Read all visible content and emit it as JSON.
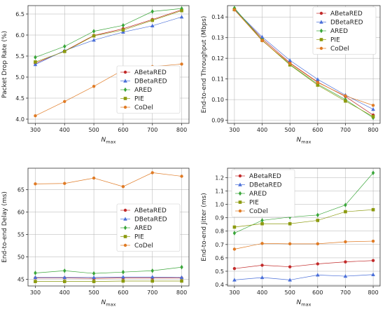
{
  "chart_data": [
    {
      "type": "line",
      "xlabel": "N",
      "xlabel_sub": "max",
      "ylabel": "Packet Drop Rate (%)",
      "x": [
        300,
        400,
        500,
        600,
        700,
        800
      ],
      "xlim": [
        275,
        825
      ],
      "ylim": [
        3.9,
        6.7
      ],
      "yticks": [
        "4.0",
        "4.5",
        "5.0",
        "5.5",
        "6.0",
        "6.5"
      ],
      "grid": true,
      "legend_position": "bottom-right",
      "series": [
        {
          "name": "ABetaRED",
          "values": [
            5.33,
            5.62,
            5.99,
            6.15,
            6.37,
            6.6
          ]
        },
        {
          "name": "DBetaRED",
          "values": [
            5.3,
            5.63,
            5.88,
            6.07,
            6.22,
            6.43
          ]
        },
        {
          "name": "ARED",
          "values": [
            5.47,
            5.73,
            6.09,
            6.23,
            6.56,
            6.63
          ]
        },
        {
          "name": "PIE",
          "values": [
            5.36,
            5.61,
            5.98,
            6.12,
            6.35,
            6.58
          ]
        },
        {
          "name": "CoDel",
          "values": [
            4.08,
            4.42,
            4.78,
            5.17,
            5.25,
            5.31
          ]
        }
      ]
    },
    {
      "type": "line",
      "xlabel": "N",
      "xlabel_sub": "max",
      "ylabel": "End-to-end Throughput (Mbps)",
      "x": [
        300,
        400,
        500,
        600,
        700,
        800
      ],
      "xlim": [
        275,
        825
      ],
      "ylim": [
        0.0885,
        0.1455
      ],
      "yticks": [
        "0.09",
        "0.10",
        "0.11",
        "0.12",
        "0.13",
        "0.14"
      ],
      "grid": true,
      "legend_position": "top-right",
      "series": [
        {
          "name": "ABetaRED",
          "values": [
            0.1438,
            0.1295,
            0.1178,
            0.1085,
            0.1015,
            0.0925
          ]
        },
        {
          "name": "DBetaRED",
          "values": [
            0.1437,
            0.1303,
            0.119,
            0.1098,
            0.1022,
            0.0953
          ]
        },
        {
          "name": "ARED",
          "values": [
            0.1443,
            0.1288,
            0.117,
            0.1075,
            0.1,
            0.0912
          ]
        },
        {
          "name": "PIE",
          "values": [
            0.1436,
            0.1287,
            0.1168,
            0.107,
            0.0993,
            0.0918
          ]
        },
        {
          "name": "CoDel",
          "values": [
            0.1434,
            0.1285,
            0.1175,
            0.1083,
            0.1018,
            0.0972
          ]
        }
      ]
    },
    {
      "type": "line",
      "xlabel": "N",
      "xlabel_sub": "max",
      "ylabel": "End-to-end Delay (ms)",
      "x": [
        300,
        400,
        500,
        600,
        700,
        800
      ],
      "xlim": [
        275,
        825
      ],
      "ylim": [
        43.5,
        69.8
      ],
      "yticks": [
        "45",
        "50",
        "55",
        "60",
        "65"
      ],
      "grid": true,
      "legend_position": "center-right",
      "series": [
        {
          "name": "ABetaRED",
          "values": [
            45.3,
            45.3,
            45.2,
            45.3,
            45.3,
            45.3
          ]
        },
        {
          "name": "DBetaRED",
          "values": [
            45.4,
            45.4,
            45.4,
            45.5,
            45.5,
            45.4
          ]
        },
        {
          "name": "ARED",
          "values": [
            46.4,
            46.9,
            46.3,
            46.6,
            46.9,
            47.7
          ]
        },
        {
          "name": "PIE",
          "values": [
            44.5,
            44.5,
            44.5,
            44.6,
            44.6,
            44.6
          ]
        },
        {
          "name": "CoDel",
          "values": [
            66.3,
            66.4,
            67.6,
            65.7,
            68.8,
            68.0
          ]
        }
      ]
    },
    {
      "type": "line",
      "xlabel": "N",
      "xlabel_sub": "max",
      "ylabel": "End-to-end Jitter (ms)",
      "x": [
        300,
        400,
        500,
        600,
        700,
        800
      ],
      "xlim": [
        275,
        825
      ],
      "ylim": [
        0.39,
        1.27
      ],
      "yticks": [
        "0.4",
        "0.5",
        "0.6",
        "0.7",
        "0.8",
        "0.9",
        "1.0",
        "1.1",
        "1.2"
      ],
      "grid": true,
      "legend_position": "top-left",
      "series": [
        {
          "name": "ABetaRED",
          "values": [
            0.52,
            0.545,
            0.533,
            0.555,
            0.57,
            0.58
          ]
        },
        {
          "name": "DBetaRED",
          "values": [
            0.435,
            0.453,
            0.435,
            0.472,
            0.463,
            0.475
          ]
        },
        {
          "name": "ARED",
          "values": [
            0.785,
            0.88,
            0.905,
            0.92,
            0.995,
            1.235
          ]
        },
        {
          "name": "PIE",
          "values": [
            0.83,
            0.855,
            0.855,
            0.88,
            0.945,
            0.96
          ]
        },
        {
          "name": "CoDel",
          "values": [
            0.665,
            0.708,
            0.705,
            0.705,
            0.72,
            0.725
          ]
        }
      ]
    }
  ],
  "style": {
    "ABetaRED": {
      "color": "#c22a2a",
      "marker": "circle"
    },
    "DBetaRED": {
      "color": "#4a6fd9",
      "marker": "triangle"
    },
    "ARED": {
      "color": "#3aa63a",
      "marker": "diamond"
    },
    "PIE": {
      "color": "#8c9a0e",
      "marker": "square"
    },
    "CoDel": {
      "color": "#e07b25",
      "marker": "circle"
    }
  }
}
